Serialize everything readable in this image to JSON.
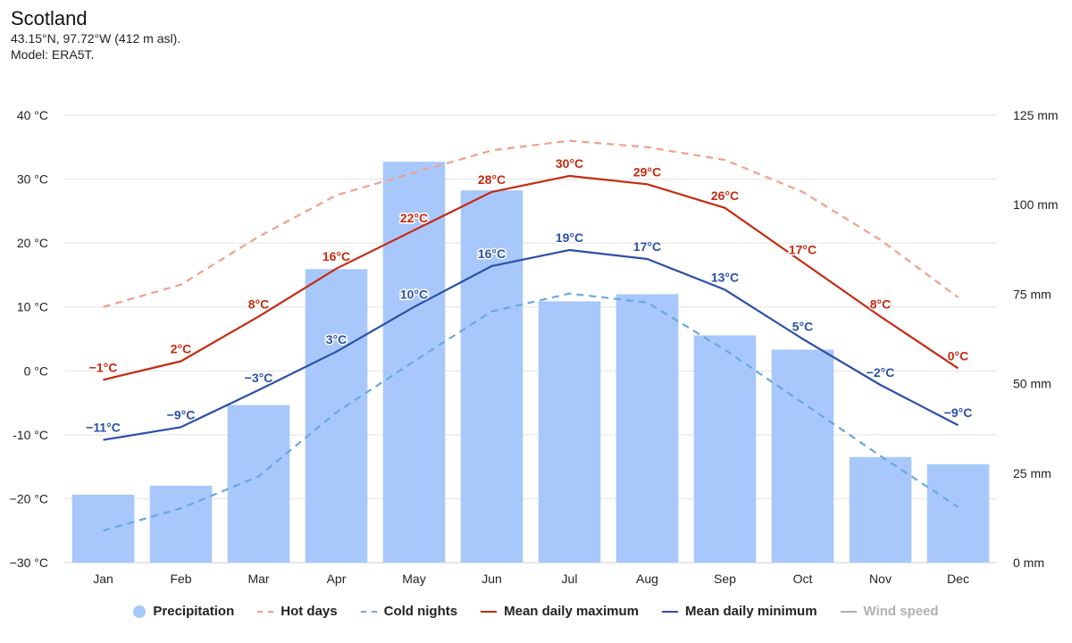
{
  "header": {
    "title": "Scotland",
    "coords": "43.15°N, 97.72°W (412 m asl).",
    "model": "Model: ERA5T."
  },
  "colors": {
    "precip": "#a8c8fb",
    "hot": "#f0a08c",
    "cold": "#6aa8dc",
    "max": "#c62a10",
    "min": "#2a50a8",
    "wind": "#b0b0b0",
    "grid": "#e2e2e2"
  },
  "legend": [
    {
      "key": "precip",
      "label": "Precipitation",
      "style": "dot"
    },
    {
      "key": "hot",
      "label": "Hot days",
      "style": "dash"
    },
    {
      "key": "cold",
      "label": "Cold nights",
      "style": "dash"
    },
    {
      "key": "max",
      "label": "Mean daily maximum",
      "style": "line"
    },
    {
      "key": "min",
      "label": "Mean daily minimum",
      "style": "line"
    },
    {
      "key": "wind",
      "label": "Wind speed",
      "style": "line",
      "muted": true
    }
  ],
  "chart_data": {
    "type": "bar+line",
    "categories": [
      "Jan",
      "Feb",
      "Mar",
      "Apr",
      "May",
      "Jun",
      "Jul",
      "Aug",
      "Sep",
      "Oct",
      "Nov",
      "Dec"
    ],
    "y_left": {
      "min": -30,
      "max": 40,
      "ticks": [
        40,
        30,
        20,
        10,
        0,
        -10,
        -20,
        -30
      ],
      "tick_labels": [
        "40 °C",
        "30 °C",
        "20 °C",
        "10 °C",
        "0 °C",
        "-10 °C",
        "−20 °C",
        "−30 °C"
      ]
    },
    "y_right": {
      "min": 0,
      "max": 125,
      "ticks": [
        125,
        100,
        75,
        50,
        25,
        0
      ],
      "tick_labels": [
        "125 mm",
        "100 mm",
        "75 mm",
        "50 mm",
        "25 mm",
        "0 mm"
      ]
    },
    "precipitation": [
      19,
      21.5,
      44,
      82,
      112,
      104,
      73,
      75,
      63.5,
      59.5,
      29.5,
      27.5
    ],
    "hot_days": [
      10,
      13.5,
      21,
      27.5,
      31,
      34.5,
      36,
      35,
      33,
      28,
      20.5,
      11.5
    ],
    "cold_nights": [
      -25,
      -21.5,
      -16.5,
      -6.5,
      1.5,
      9.3,
      12.1,
      10.7,
      3.3,
      -5,
      -13.3,
      -21.3
    ],
    "mean_max": [
      -1.4,
      1.5,
      8.5,
      16,
      22,
      28,
      30.5,
      29.2,
      25.5,
      17,
      8.5,
      0.4
    ],
    "mean_min": [
      -10.8,
      -8.8,
      -3,
      3,
      10,
      16.4,
      18.9,
      17.5,
      12.7,
      5,
      -2.2,
      -8.5
    ],
    "mean_max_labels": [
      "−1°C",
      "2°C",
      "8°C",
      "16°C",
      "22°C",
      "28°C",
      "30°C",
      "29°C",
      "26°C",
      "17°C",
      "8°C",
      "0°C"
    ],
    "mean_min_labels": [
      "−11°C",
      "−9°C",
      "−3°C",
      "3°C",
      "10°C",
      "16°C",
      "19°C",
      "17°C",
      "13°C",
      "5°C",
      "−2°C",
      "−9°C"
    ]
  }
}
